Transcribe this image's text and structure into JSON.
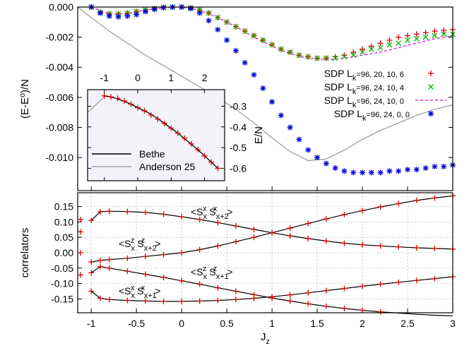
{
  "chart_data": [
    {
      "id": "energy",
      "type": "scatter",
      "ylabel": "(E-E⁰)/N",
      "xlim": [
        -1.15,
        3.0
      ],
      "ylim": [
        -0.0122,
        0.0
      ],
      "yticks": [
        "0.000",
        "-0.002",
        "-0.004",
        "-0.006",
        "-0.008",
        "-0.010"
      ],
      "ytick_values": [
        0.0,
        -0.002,
        -0.004,
        -0.006,
        -0.008,
        -0.01
      ],
      "grid": false,
      "legend_position": "right",
      "series": [
        {
          "name": "SDP L_k=96, 20, 10, 6",
          "name_parts": [
            "SDP L",
            "k",
            "=96, 20, 10, 6"
          ],
          "marker": "plus",
          "color": "#dd0000",
          "x": [
            -1.0,
            -0.9,
            -0.8,
            -0.7,
            -0.6,
            -0.5,
            -0.4,
            -0.3,
            -0.2,
            -0.1,
            0.0,
            0.1,
            0.2,
            0.3,
            0.4,
            0.5,
            0.6,
            0.7,
            0.8,
            0.9,
            1.0,
            1.1,
            1.2,
            1.3,
            1.4,
            1.5,
            1.6,
            1.7,
            1.8,
            1.9,
            2.0,
            2.1,
            2.2,
            2.3,
            2.4,
            2.5,
            2.6,
            2.7,
            2.8,
            2.9,
            3.0
          ],
          "y": [
            0.0,
            -0.00035,
            -0.00045,
            -0.00045,
            -0.0004,
            -0.0003,
            -0.0002,
            -0.0001,
            -3e-05,
            0.0,
            0.0,
            -5e-05,
            -0.0002,
            -0.0004,
            -0.0007,
            -0.001,
            -0.0013,
            -0.0016,
            -0.0019,
            -0.0022,
            -0.0025,
            -0.0028,
            -0.003,
            -0.0032,
            -0.0033,
            -0.0034,
            -0.0034,
            -0.0033,
            -0.0032,
            -0.003,
            -0.0028,
            -0.0026,
            -0.0024,
            -0.0022,
            -0.002,
            -0.0019,
            -0.0018,
            -0.0017,
            -0.0016,
            -0.00155,
            -0.0015
          ]
        },
        {
          "name": "SDP L_k=96, 24, 10, 4",
          "name_parts": [
            "SDP L",
            "k",
            "=96, 24, 10, 4"
          ],
          "marker": "cross",
          "color": "#00bb00",
          "x": [
            -1.0,
            -0.9,
            -0.8,
            -0.7,
            -0.6,
            -0.5,
            -0.4,
            -0.3,
            -0.2,
            -0.1,
            0.0,
            0.1,
            0.2,
            0.3,
            0.4,
            0.5,
            0.6,
            0.7,
            0.8,
            0.9,
            1.0,
            1.1,
            1.2,
            1.3,
            1.4,
            1.5,
            1.6,
            1.7,
            1.8,
            1.9,
            2.0,
            2.1,
            2.2,
            2.3,
            2.4,
            2.5,
            2.6,
            2.7,
            2.8,
            2.9,
            3.0
          ],
          "y": [
            0.0,
            -0.00035,
            -0.00045,
            -0.00045,
            -0.0004,
            -0.0003,
            -0.0002,
            -0.0001,
            -3e-05,
            0.0,
            0.0,
            -5e-05,
            -0.0002,
            -0.0004,
            -0.0007,
            -0.001,
            -0.0013,
            -0.0016,
            -0.0019,
            -0.0022,
            -0.0025,
            -0.0028,
            -0.003,
            -0.0032,
            -0.0033,
            -0.0034,
            -0.0034,
            -0.0034,
            -0.0033,
            -0.0032,
            -0.003,
            -0.0028,
            -0.0027,
            -0.0025,
            -0.0024,
            -0.0022,
            -0.0021,
            -0.002,
            -0.0019,
            -0.0018,
            -0.0018
          ]
        },
        {
          "name": "SDP L_k=96, 24, 10, 0",
          "name_parts": [
            "SDP L",
            "k",
            "=96, 24, 10, 0"
          ],
          "marker": "dashed-line",
          "color": "#e000e0",
          "x": [
            -1.0,
            -0.8,
            -0.6,
            -0.4,
            -0.2,
            0.0,
            0.2,
            0.4,
            0.6,
            0.8,
            1.0,
            1.2,
            1.4,
            1.6,
            1.8,
            2.0,
            2.2,
            2.4,
            2.6,
            2.8,
            3.0
          ],
          "y": [
            0.0,
            -0.00048,
            -0.00042,
            -0.0002,
            -4e-05,
            0.0,
            -0.0002,
            -0.0007,
            -0.0013,
            -0.002,
            -0.0026,
            -0.0031,
            -0.0034,
            -0.0035,
            -0.0034,
            -0.0032,
            -0.003,
            -0.0027,
            -0.0024,
            -0.0021,
            -0.0019
          ]
        },
        {
          "name": "SDP L_k=96, 24, 0, 0",
          "name_parts": [
            "SDP L",
            "k",
            "=96, 24, 0, 0"
          ],
          "marker": "star",
          "color": "#0000dd",
          "x": [
            -1.0,
            -0.9,
            -0.8,
            -0.7,
            -0.6,
            -0.5,
            -0.4,
            -0.3,
            -0.2,
            -0.1,
            0.0,
            0.1,
            0.2,
            0.3,
            0.4,
            0.5,
            0.6,
            0.7,
            0.8,
            0.9,
            1.0,
            1.1,
            1.2,
            1.3,
            1.4,
            1.5,
            1.6,
            1.7,
            1.8,
            1.9,
            2.0,
            2.1,
            2.2,
            2.3,
            2.4,
            2.5,
            2.6,
            2.7,
            2.8,
            2.9,
            3.0
          ],
          "y": [
            0.0,
            -0.0004,
            -0.0006,
            -0.00065,
            -0.0006,
            -0.0005,
            -0.0003,
            -0.00015,
            -3e-05,
            0.0,
            0.0,
            -0.0001,
            -0.0004,
            -0.0009,
            -0.0015,
            -0.0022,
            -0.0029,
            -0.0037,
            -0.0045,
            -0.0054,
            -0.0063,
            -0.0072,
            -0.008,
            -0.0088,
            -0.0095,
            -0.01,
            -0.0104,
            -0.0107,
            -0.0109,
            -0.011,
            -0.011,
            -0.011,
            -0.011,
            -0.0109,
            -0.0109,
            -0.0108,
            -0.0108,
            -0.0107,
            -0.0106,
            -0.0106,
            -0.0105
          ]
        },
        {
          "name": "Anderson 25",
          "marker": "line",
          "color": "#a0a0a0",
          "x": [
            -1.15,
            -1.0,
            -0.8,
            -0.6,
            -0.4,
            -0.2,
            0.0,
            0.2,
            0.4,
            0.6,
            0.8,
            1.0,
            1.2,
            1.4,
            1.6,
            1.8,
            2.0,
            2.2,
            2.4,
            2.6,
            2.8,
            3.0
          ],
          "y": [
            0.0,
            -0.0007,
            -0.0016,
            -0.0024,
            -0.0032,
            -0.0039,
            -0.0046,
            -0.0053,
            -0.006,
            -0.0068,
            -0.0077,
            -0.0087,
            -0.0096,
            -0.0102,
            -0.0101,
            -0.0095,
            -0.0088,
            -0.0082,
            -0.0077,
            -0.0072,
            -0.0068,
            -0.0065
          ]
        }
      ]
    },
    {
      "id": "inset",
      "type": "line",
      "ylabel": "E/N",
      "xlim": [
        -1.5,
        2.6
      ],
      "ylim": [
        -0.66,
        -0.22
      ],
      "xticks": [
        "-1",
        "0",
        "1",
        "2"
      ],
      "xtick_values": [
        -1,
        0,
        1,
        2
      ],
      "yticks": [
        "-0.3",
        "-0.4",
        "-0.5",
        "-0.6"
      ],
      "ytick_values": [
        -0.3,
        -0.4,
        -0.5,
        -0.6
      ],
      "legend_position": "bottom-left",
      "series": [
        {
          "name": "Bethe",
          "marker": "line",
          "color": "#000000",
          "x": [
            -1.0,
            -0.8,
            -0.5,
            -0.2,
            0.0,
            0.3,
            0.6,
            0.9,
            1.2,
            1.5,
            1.8,
            2.1,
            2.4
          ],
          "y": [
            -0.25,
            -0.255,
            -0.27,
            -0.29,
            -0.307,
            -0.33,
            -0.36,
            -0.395,
            -0.43,
            -0.47,
            -0.51,
            -0.555,
            -0.6
          ]
        },
        {
          "name": "Anderson 25",
          "marker": "line",
          "color": "#a0a0a0",
          "x": [
            -1.5,
            -1.3,
            -1.1,
            -1.0
          ],
          "y": [
            -0.33,
            -0.3,
            -0.27,
            -0.255
          ]
        },
        {
          "name": "SDP",
          "marker": "plus",
          "color": "#dd0000",
          "x": [
            -1.0,
            -0.8,
            -0.6,
            -0.4,
            -0.2,
            0.0,
            0.2,
            0.4,
            0.6,
            0.8,
            1.0,
            1.2,
            1.4,
            1.6,
            1.8,
            2.0,
            2.2,
            2.4
          ],
          "y": [
            -0.25,
            -0.255,
            -0.262,
            -0.275,
            -0.29,
            -0.307,
            -0.322,
            -0.342,
            -0.362,
            -0.383,
            -0.406,
            -0.43,
            -0.455,
            -0.482,
            -0.51,
            -0.54,
            -0.57,
            -0.6
          ]
        }
      ]
    },
    {
      "id": "correlators",
      "type": "line",
      "xlabel": "J_z",
      "xlabel_parts": [
        "J",
        "z"
      ],
      "ylabel": "correlators",
      "xlim": [
        -1.15,
        3.0
      ],
      "ylim": [
        -0.195,
        0.195
      ],
      "xticks": [
        "-1",
        "-0.5",
        "0",
        "0.5",
        "1",
        "1.5",
        "2",
        "2.5",
        "3"
      ],
      "xtick_values": [
        -1,
        -0.5,
        0,
        0.5,
        1,
        1.5,
        2,
        2.5,
        3
      ],
      "yticks": [
        "0.15",
        "0.10",
        "0.05",
        "0.00",
        "-0.05",
        "-0.10",
        "-0.15"
      ],
      "ytick_values": [
        0.15,
        0.1,
        0.05,
        0.0,
        -0.05,
        -0.1,
        -0.15
      ],
      "grid": true,
      "annotations": [
        {
          "label": "<SxxSxx+2>",
          "parts": [
            "<S",
            "x",
            "x",
            " S",
            "x+2",
            "x",
            ">"
          ]
        },
        {
          "label": "<SzxSzx+2>",
          "parts": [
            "<S",
            "x",
            "z",
            " S",
            "x+2",
            "z",
            ">"
          ]
        },
        {
          "label": "<SzxSzx+1>",
          "parts": [
            "<S",
            "x",
            "z",
            " S",
            "x+1",
            "z",
            ">"
          ]
        },
        {
          "label": "<SxxSxx+1>",
          "parts": [
            "<S",
            "x",
            "x",
            " S",
            "x+1",
            "x",
            ">"
          ]
        }
      ],
      "series": [
        {
          "name": "<SxxSxx+2>",
          "color": "#dd0000",
          "x": [
            -1.0,
            -0.9,
            -0.8,
            -0.6,
            -0.4,
            -0.2,
            0.0,
            0.2,
            0.4,
            0.6,
            0.8,
            1.0,
            1.2,
            1.4,
            1.6,
            1.8,
            2.0,
            2.2,
            2.4,
            2.6,
            2.8,
            3.0
          ],
          "y": [
            0.105,
            0.133,
            0.135,
            0.134,
            0.131,
            0.125,
            0.117,
            0.108,
            0.098,
            0.087,
            0.076,
            0.065,
            0.055,
            0.046,
            0.038,
            0.031,
            0.026,
            0.022,
            0.019,
            0.016,
            0.014,
            0.012
          ]
        },
        {
          "name": "<SzxSzx+2>",
          "color": "#dd0000",
          "x": [
            -1.0,
            -0.9,
            -0.8,
            -0.6,
            -0.4,
            -0.2,
            0.0,
            0.2,
            0.4,
            0.6,
            0.8,
            1.0,
            1.2,
            1.4,
            1.6,
            1.8,
            2.0,
            2.2,
            2.4,
            2.6,
            2.8,
            3.0
          ],
          "y": [
            -0.03,
            -0.025,
            -0.022,
            -0.018,
            -0.012,
            -0.006,
            0.0,
            0.01,
            0.022,
            0.036,
            0.05,
            0.065,
            0.08,
            0.095,
            0.11,
            0.124,
            0.137,
            0.149,
            0.16,
            0.17,
            0.178,
            0.185
          ]
        },
        {
          "name": "<SzxSzx+1>",
          "color": "#dd0000",
          "x": [
            -1.0,
            -0.9,
            -0.8,
            -0.6,
            -0.4,
            -0.2,
            0.0,
            0.2,
            0.4,
            0.6,
            0.8,
            1.0,
            1.2,
            1.4,
            1.6,
            1.8,
            2.0,
            2.2,
            2.4,
            2.6,
            2.8,
            3.0
          ],
          "y": [
            -0.065,
            -0.045,
            -0.05,
            -0.06,
            -0.07,
            -0.08,
            -0.091,
            -0.102,
            -0.114,
            -0.125,
            -0.136,
            -0.147,
            -0.157,
            -0.166,
            -0.174,
            -0.181,
            -0.187,
            -0.192,
            -0.196,
            -0.2,
            -0.203,
            -0.205
          ]
        },
        {
          "name": "<SxxSxx+1>",
          "color": "#dd0000",
          "x": [
            -1.0,
            -0.9,
            -0.8,
            -0.6,
            -0.4,
            -0.2,
            0.0,
            0.2,
            0.4,
            0.6,
            0.8,
            1.0,
            1.2,
            1.4,
            1.6,
            1.8,
            2.0,
            2.2,
            2.4,
            2.6,
            2.8,
            3.0
          ],
          "y": [
            -0.125,
            -0.148,
            -0.152,
            -0.155,
            -0.157,
            -0.158,
            -0.158,
            -0.157,
            -0.155,
            -0.152,
            -0.148,
            -0.143,
            -0.137,
            -0.13,
            -0.123,
            -0.116,
            -0.109,
            -0.102,
            -0.096,
            -0.09,
            -0.084,
            -0.078
          ]
        }
      ]
    }
  ]
}
